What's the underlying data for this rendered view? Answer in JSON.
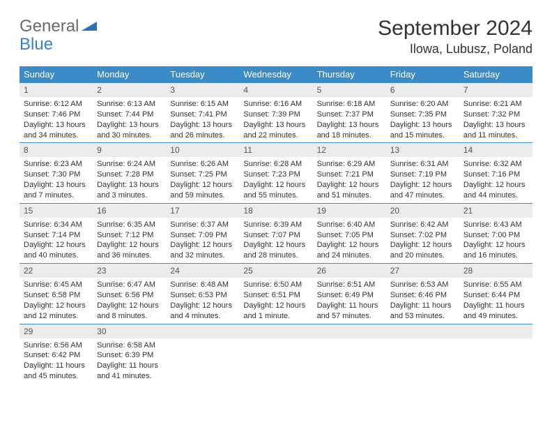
{
  "logo": {
    "part1": "General",
    "part2": "Blue"
  },
  "title": "September 2024",
  "location": "Ilowa, Lubusz, Poland",
  "colors": {
    "header_bg": "#3b8bc9",
    "header_text": "#ffffff",
    "daynum_bg": "#ececec",
    "row_border": "#3b8bc9",
    "body_text": "#333333",
    "logo_gray": "#6b6b6b",
    "logo_blue": "#3b7fc4"
  },
  "daysOfWeek": [
    "Sunday",
    "Monday",
    "Tuesday",
    "Wednesday",
    "Thursday",
    "Friday",
    "Saturday"
  ],
  "weeks": [
    [
      {
        "num": "1",
        "sunrise": "Sunrise: 6:12 AM",
        "sunset": "Sunset: 7:46 PM",
        "daylight": "Daylight: 13 hours and 34 minutes."
      },
      {
        "num": "2",
        "sunrise": "Sunrise: 6:13 AM",
        "sunset": "Sunset: 7:44 PM",
        "daylight": "Daylight: 13 hours and 30 minutes."
      },
      {
        "num": "3",
        "sunrise": "Sunrise: 6:15 AM",
        "sunset": "Sunset: 7:41 PM",
        "daylight": "Daylight: 13 hours and 26 minutes."
      },
      {
        "num": "4",
        "sunrise": "Sunrise: 6:16 AM",
        "sunset": "Sunset: 7:39 PM",
        "daylight": "Daylight: 13 hours and 22 minutes."
      },
      {
        "num": "5",
        "sunrise": "Sunrise: 6:18 AM",
        "sunset": "Sunset: 7:37 PM",
        "daylight": "Daylight: 13 hours and 18 minutes."
      },
      {
        "num": "6",
        "sunrise": "Sunrise: 6:20 AM",
        "sunset": "Sunset: 7:35 PM",
        "daylight": "Daylight: 13 hours and 15 minutes."
      },
      {
        "num": "7",
        "sunrise": "Sunrise: 6:21 AM",
        "sunset": "Sunset: 7:32 PM",
        "daylight": "Daylight: 13 hours and 11 minutes."
      }
    ],
    [
      {
        "num": "8",
        "sunrise": "Sunrise: 6:23 AM",
        "sunset": "Sunset: 7:30 PM",
        "daylight": "Daylight: 13 hours and 7 minutes."
      },
      {
        "num": "9",
        "sunrise": "Sunrise: 6:24 AM",
        "sunset": "Sunset: 7:28 PM",
        "daylight": "Daylight: 13 hours and 3 minutes."
      },
      {
        "num": "10",
        "sunrise": "Sunrise: 6:26 AM",
        "sunset": "Sunset: 7:25 PM",
        "daylight": "Daylight: 12 hours and 59 minutes."
      },
      {
        "num": "11",
        "sunrise": "Sunrise: 6:28 AM",
        "sunset": "Sunset: 7:23 PM",
        "daylight": "Daylight: 12 hours and 55 minutes."
      },
      {
        "num": "12",
        "sunrise": "Sunrise: 6:29 AM",
        "sunset": "Sunset: 7:21 PM",
        "daylight": "Daylight: 12 hours and 51 minutes."
      },
      {
        "num": "13",
        "sunrise": "Sunrise: 6:31 AM",
        "sunset": "Sunset: 7:19 PM",
        "daylight": "Daylight: 12 hours and 47 minutes."
      },
      {
        "num": "14",
        "sunrise": "Sunrise: 6:32 AM",
        "sunset": "Sunset: 7:16 PM",
        "daylight": "Daylight: 12 hours and 44 minutes."
      }
    ],
    [
      {
        "num": "15",
        "sunrise": "Sunrise: 6:34 AM",
        "sunset": "Sunset: 7:14 PM",
        "daylight": "Daylight: 12 hours and 40 minutes."
      },
      {
        "num": "16",
        "sunrise": "Sunrise: 6:35 AM",
        "sunset": "Sunset: 7:12 PM",
        "daylight": "Daylight: 12 hours and 36 minutes."
      },
      {
        "num": "17",
        "sunrise": "Sunrise: 6:37 AM",
        "sunset": "Sunset: 7:09 PM",
        "daylight": "Daylight: 12 hours and 32 minutes."
      },
      {
        "num": "18",
        "sunrise": "Sunrise: 6:39 AM",
        "sunset": "Sunset: 7:07 PM",
        "daylight": "Daylight: 12 hours and 28 minutes."
      },
      {
        "num": "19",
        "sunrise": "Sunrise: 6:40 AM",
        "sunset": "Sunset: 7:05 PM",
        "daylight": "Daylight: 12 hours and 24 minutes."
      },
      {
        "num": "20",
        "sunrise": "Sunrise: 6:42 AM",
        "sunset": "Sunset: 7:02 PM",
        "daylight": "Daylight: 12 hours and 20 minutes."
      },
      {
        "num": "21",
        "sunrise": "Sunrise: 6:43 AM",
        "sunset": "Sunset: 7:00 PM",
        "daylight": "Daylight: 12 hours and 16 minutes."
      }
    ],
    [
      {
        "num": "22",
        "sunrise": "Sunrise: 6:45 AM",
        "sunset": "Sunset: 6:58 PM",
        "daylight": "Daylight: 12 hours and 12 minutes."
      },
      {
        "num": "23",
        "sunrise": "Sunrise: 6:47 AM",
        "sunset": "Sunset: 6:56 PM",
        "daylight": "Daylight: 12 hours and 8 minutes."
      },
      {
        "num": "24",
        "sunrise": "Sunrise: 6:48 AM",
        "sunset": "Sunset: 6:53 PM",
        "daylight": "Daylight: 12 hours and 4 minutes."
      },
      {
        "num": "25",
        "sunrise": "Sunrise: 6:50 AM",
        "sunset": "Sunset: 6:51 PM",
        "daylight": "Daylight: 12 hours and 1 minute."
      },
      {
        "num": "26",
        "sunrise": "Sunrise: 6:51 AM",
        "sunset": "Sunset: 6:49 PM",
        "daylight": "Daylight: 11 hours and 57 minutes."
      },
      {
        "num": "27",
        "sunrise": "Sunrise: 6:53 AM",
        "sunset": "Sunset: 6:46 PM",
        "daylight": "Daylight: 11 hours and 53 minutes."
      },
      {
        "num": "28",
        "sunrise": "Sunrise: 6:55 AM",
        "sunset": "Sunset: 6:44 PM",
        "daylight": "Daylight: 11 hours and 49 minutes."
      }
    ],
    [
      {
        "num": "29",
        "sunrise": "Sunrise: 6:56 AM",
        "sunset": "Sunset: 6:42 PM",
        "daylight": "Daylight: 11 hours and 45 minutes."
      },
      {
        "num": "30",
        "sunrise": "Sunrise: 6:58 AM",
        "sunset": "Sunset: 6:39 PM",
        "daylight": "Daylight: 11 hours and 41 minutes."
      },
      null,
      null,
      null,
      null,
      null
    ]
  ]
}
